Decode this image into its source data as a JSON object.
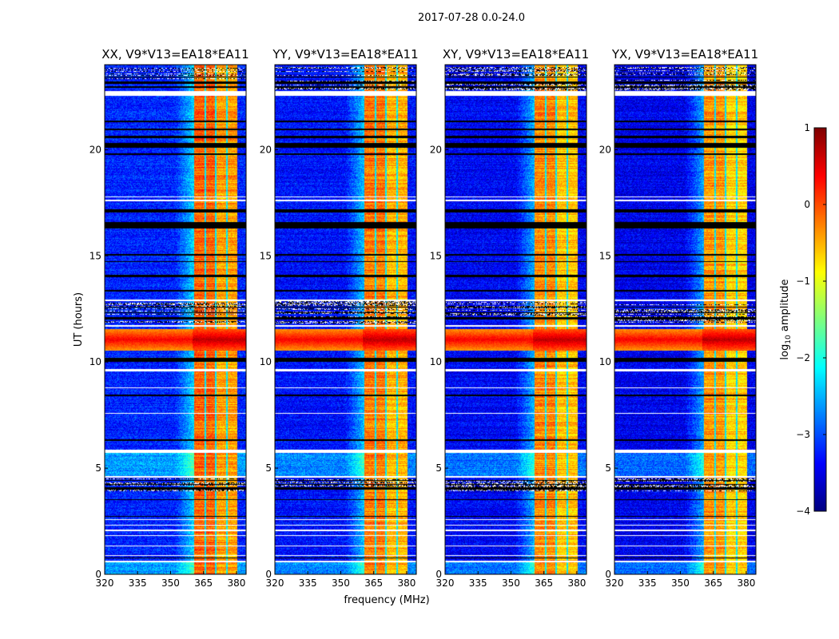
{
  "chart_data": {
    "type": "heatmap",
    "title": "2017-07-28 0.0-24.0",
    "xlabel": "frequency (MHz)",
    "ylabel": "UT (hours)",
    "xlim": [
      320,
      384.4
    ],
    "ylim": [
      0,
      24
    ],
    "xticks": [
      320,
      335,
      350,
      365,
      380
    ],
    "yticks": [
      0,
      5,
      10,
      15,
      20
    ],
    "panels": [
      {
        "title": "XX, V9*V13=EA18*EA11",
        "level_offset": 0.1
      },
      {
        "title": "YY, V9*V13=EA18*EA11",
        "level_offset": 0.0
      },
      {
        "title": "XY, V9*V13=EA18*EA11",
        "level_offset": -0.1
      },
      {
        "title": "YX, V9*V13=EA18*EA11",
        "level_offset": -0.15
      }
    ],
    "colorbar": {
      "label": "log₁₀ amplitude",
      "label_main": "log",
      "label_sub": "10",
      "label_rest": " amplitude",
      "range": [
        -4,
        1
      ],
      "ticks": [
        "1",
        "0",
        "−1",
        "−2",
        "−3",
        "−4"
      ],
      "colormap": "jet"
    },
    "background_level": -3.3,
    "rfi_bands_mhz": [
      [
        360.7,
        365.5
      ],
      [
        366.2,
        370.2
      ],
      [
        370.9,
        375.3
      ],
      [
        376.0,
        380.4
      ]
    ],
    "rfi_level": -0.5,
    "strong_interference_hours": [
      [
        10.55,
        11.55
      ]
    ],
    "strong_interference_level": 0.4,
    "flagged_white_hours": [
      [
        22.55,
        22.75
      ],
      [
        17.55,
        17.65
      ],
      [
        17.75,
        17.8
      ],
      [
        12.85,
        12.95
      ],
      [
        11.65,
        11.75
      ],
      [
        9.55,
        9.65
      ],
      [
        8.75,
        8.82
      ],
      [
        7.55,
        7.6
      ],
      [
        5.7,
        5.85
      ],
      [
        4.55,
        4.62
      ],
      [
        2.55,
        2.6
      ],
      [
        2.3,
        2.35
      ],
      [
        2.05,
        2.12
      ],
      [
        1.8,
        1.85
      ],
      [
        1.3,
        1.35
      ],
      [
        0.85,
        0.9
      ],
      [
        0.55,
        0.65
      ]
    ],
    "flagged_black_hours": [
      [
        23.1,
        23.2
      ],
      [
        22.9,
        23.0
      ],
      [
        23.4,
        23.45
      ],
      [
        21.3,
        21.35
      ],
      [
        20.9,
        21.0
      ],
      [
        20.55,
        20.65
      ],
      [
        20.1,
        20.3
      ],
      [
        19.75,
        19.82
      ],
      [
        17.05,
        17.2
      ],
      [
        16.3,
        16.6
      ],
      [
        15.0,
        15.08
      ],
      [
        14.7,
        14.75
      ],
      [
        14.0,
        14.1
      ],
      [
        13.3,
        13.4
      ],
      [
        12.0,
        12.1
      ],
      [
        12.3,
        12.35
      ],
      [
        12.55,
        12.6
      ],
      [
        10.0,
        10.2
      ],
      [
        8.4,
        8.45
      ],
      [
        6.3,
        6.35
      ],
      [
        4.0,
        4.1
      ],
      [
        4.2,
        4.25
      ],
      [
        4.4,
        4.45
      ],
      [
        3.5,
        3.55
      ],
      [
        2.7,
        2.75
      ],
      [
        0.75,
        0.78
      ]
    ],
    "striped_hours": [
      [
        11.8,
        12.9
      ],
      [
        22.8,
        23.9
      ],
      [
        3.9,
        4.5
      ]
    ]
  }
}
